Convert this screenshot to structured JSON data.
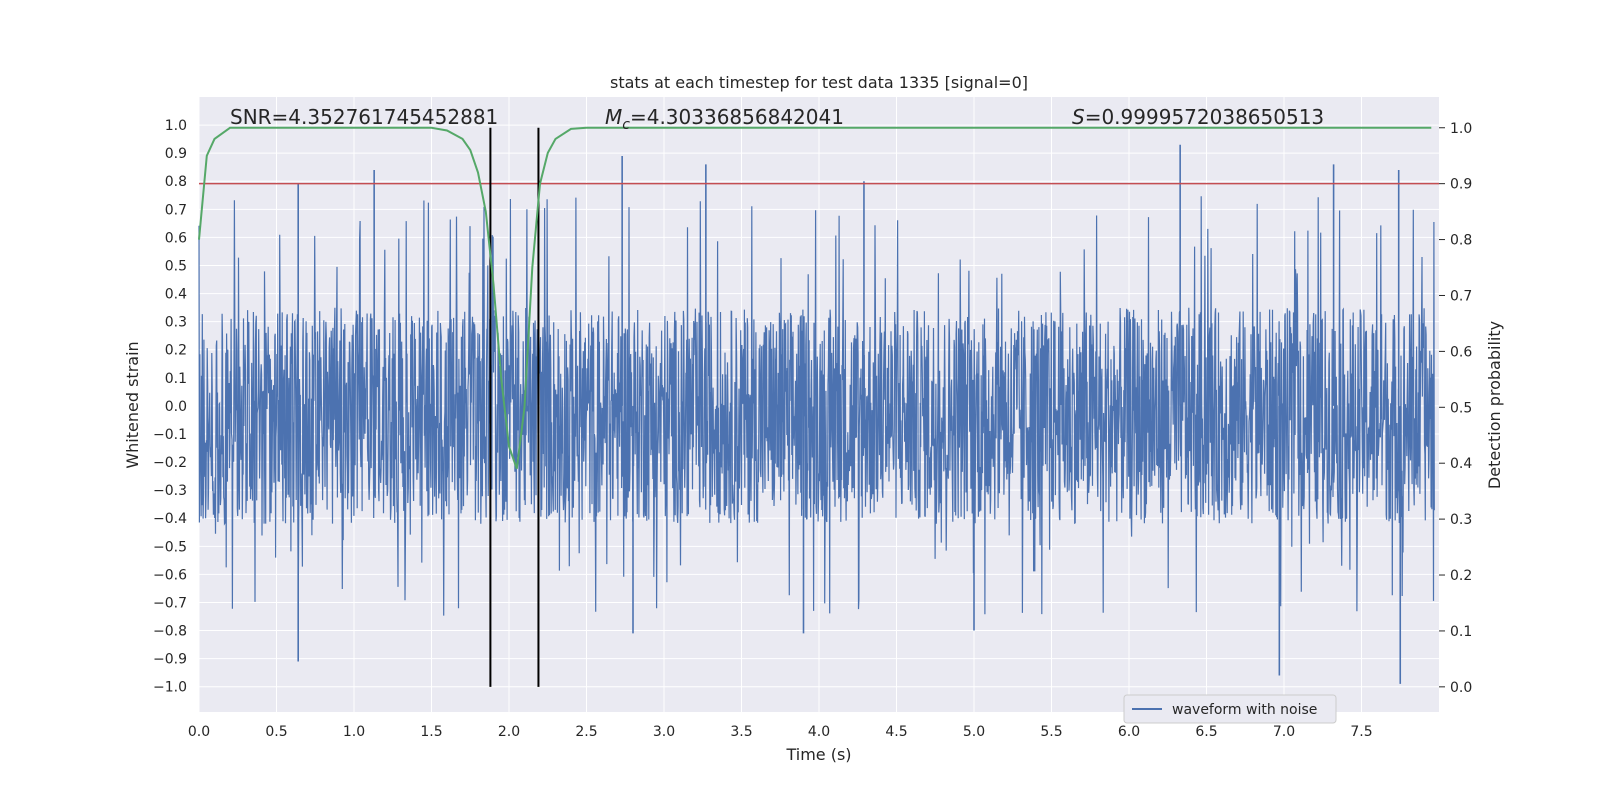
{
  "chart_data": {
    "type": "line",
    "title": "stats at each timestep for test data 1335 [signal=0]",
    "xlabel": "Time (s)",
    "ylabel": "Whitened strain",
    "y2label": "Detection probability",
    "xlim": [
      0.0,
      8.0
    ],
    "ylim": [
      -1.09,
      1.1
    ],
    "y2lim": [
      -0.045,
      1.055
    ],
    "grid": true,
    "legend_position": "lower-right",
    "x_ticks": [
      "0.0",
      "0.5",
      "1.0",
      "1.5",
      "2.0",
      "2.5",
      "3.0",
      "3.5",
      "4.0",
      "4.5",
      "5.0",
      "5.5",
      "6.0",
      "6.5",
      "7.0",
      "7.5"
    ],
    "y_ticks": [
      "1.0",
      "0.9",
      "0.8",
      "0.7",
      "0.6",
      "0.5",
      "0.4",
      "0.3",
      "0.2",
      "0.1",
      "0.0",
      "−0.1",
      "−0.2",
      "−0.3",
      "−0.4",
      "−0.5",
      "−0.6",
      "−0.7",
      "−0.8",
      "−0.9",
      "−1.0"
    ],
    "y2_ticks": [
      "1.0",
      "0.9",
      "0.8",
      "0.7",
      "0.6",
      "0.5",
      "0.4",
      "0.3",
      "0.2",
      "0.1",
      "0.0"
    ],
    "annotations": {
      "snr": "SNR=4.352761745452881",
      "mc_symbol": "M",
      "mc_sub": "c",
      "mc_value": "=4.30336856842041",
      "s_symbol": "S",
      "s_value": "=0.9999572038650513"
    },
    "series": [
      {
        "name": "waveform with noise",
        "color": "#4c72b0",
        "axis": "left",
        "note": "dense noise waveform, sampled values approximately in [-1.0, 0.94]",
        "core_range": [
          -0.42,
          0.35
        ],
        "peak_max": 0.94,
        "trough_min": -1.0,
        "notable_peaks": [
          {
            "x": 0.64,
            "y": 0.79
          },
          {
            "x": 1.13,
            "y": 0.84
          },
          {
            "x": 2.73,
            "y": 0.89
          },
          {
            "x": 3.27,
            "y": 0.86
          },
          {
            "x": 4.29,
            "y": 0.8
          },
          {
            "x": 6.33,
            "y": 0.93
          },
          {
            "x": 7.32,
            "y": 0.86
          },
          {
            "x": 7.74,
            "y": 0.84
          }
        ],
        "notable_troughs": [
          {
            "x": 0.64,
            "y": -0.91
          },
          {
            "x": 6.97,
            "y": -0.96
          },
          {
            "x": 7.75,
            "y": -0.99
          },
          {
            "x": 3.9,
            "y": -0.81
          },
          {
            "x": 5.0,
            "y": -0.8
          },
          {
            "x": 2.8,
            "y": -0.81
          }
        ]
      },
      {
        "name": "detection probability",
        "color": "#55a868",
        "axis": "right",
        "x": [
          0.0,
          0.05,
          0.1,
          0.2,
          0.5,
          1.0,
          1.5,
          1.6,
          1.7,
          1.75,
          1.8,
          1.85,
          1.9,
          1.95,
          2.0,
          2.05,
          2.1,
          2.15,
          2.2,
          2.25,
          2.3,
          2.4,
          2.5,
          3.0,
          7.95
        ],
        "y": [
          0.8,
          0.95,
          0.98,
          1.0,
          1.0,
          1.0,
          1.0,
          0.995,
          0.98,
          0.96,
          0.92,
          0.85,
          0.72,
          0.55,
          0.43,
          0.39,
          0.5,
          0.75,
          0.9,
          0.955,
          0.98,
          0.998,
          1.0,
          1.0,
          1.0
        ]
      }
    ],
    "threshold_line": {
      "color": "#c44e52",
      "axis": "right",
      "value": 0.9
    },
    "vertical_lines": [
      {
        "x": 1.88,
        "color": "#000000"
      },
      {
        "x": 2.19,
        "color": "#000000"
      }
    ]
  },
  "legend": {
    "label": "waveform with noise"
  }
}
